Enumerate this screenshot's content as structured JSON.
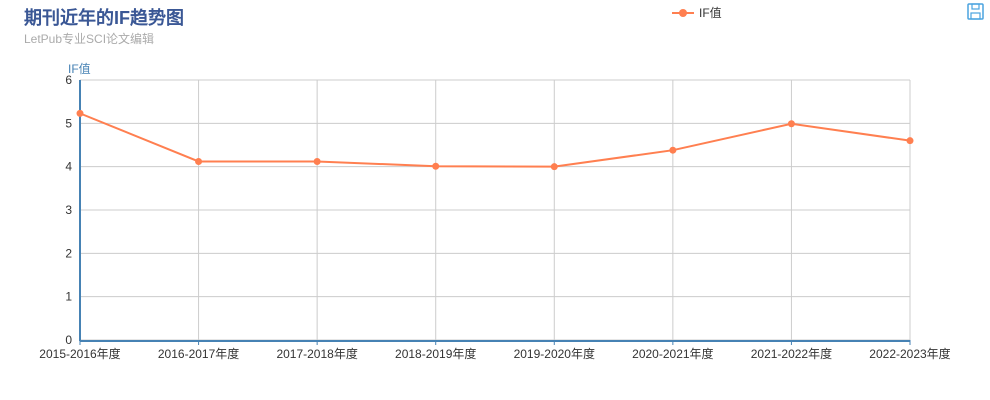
{
  "title": "期刊近年的IF趋势图",
  "subtitle": "LetPub专业SCI论文编辑",
  "toolbox": {
    "save_icon": "save-icon"
  },
  "colors": {
    "series": "#ff7f50",
    "axis": "#4682b4",
    "grid": "#cccccc",
    "title": "#3a5795"
  },
  "chart_data": {
    "type": "line",
    "title": "期刊近年的IF趋势图",
    "subtitle": "LetPub专业SCI论文编辑",
    "ylabel": "IF值",
    "ylim": [
      0,
      6
    ],
    "yticks": [
      "0",
      "1",
      "2",
      "3",
      "4",
      "5",
      "6"
    ],
    "grid": true,
    "legend": "top",
    "categories": [
      "2015-2016年度",
      "2016-2017年度",
      "2017-2018年度",
      "2018-2019年度",
      "2019-2020年度",
      "2020-2021年度",
      "2021-2022年度",
      "2022-2023年度"
    ],
    "series": [
      {
        "name": "IF值",
        "values": [
          5.23,
          4.12,
          4.12,
          4.01,
          4.0,
          4.38,
          4.99,
          4.6
        ]
      }
    ]
  }
}
